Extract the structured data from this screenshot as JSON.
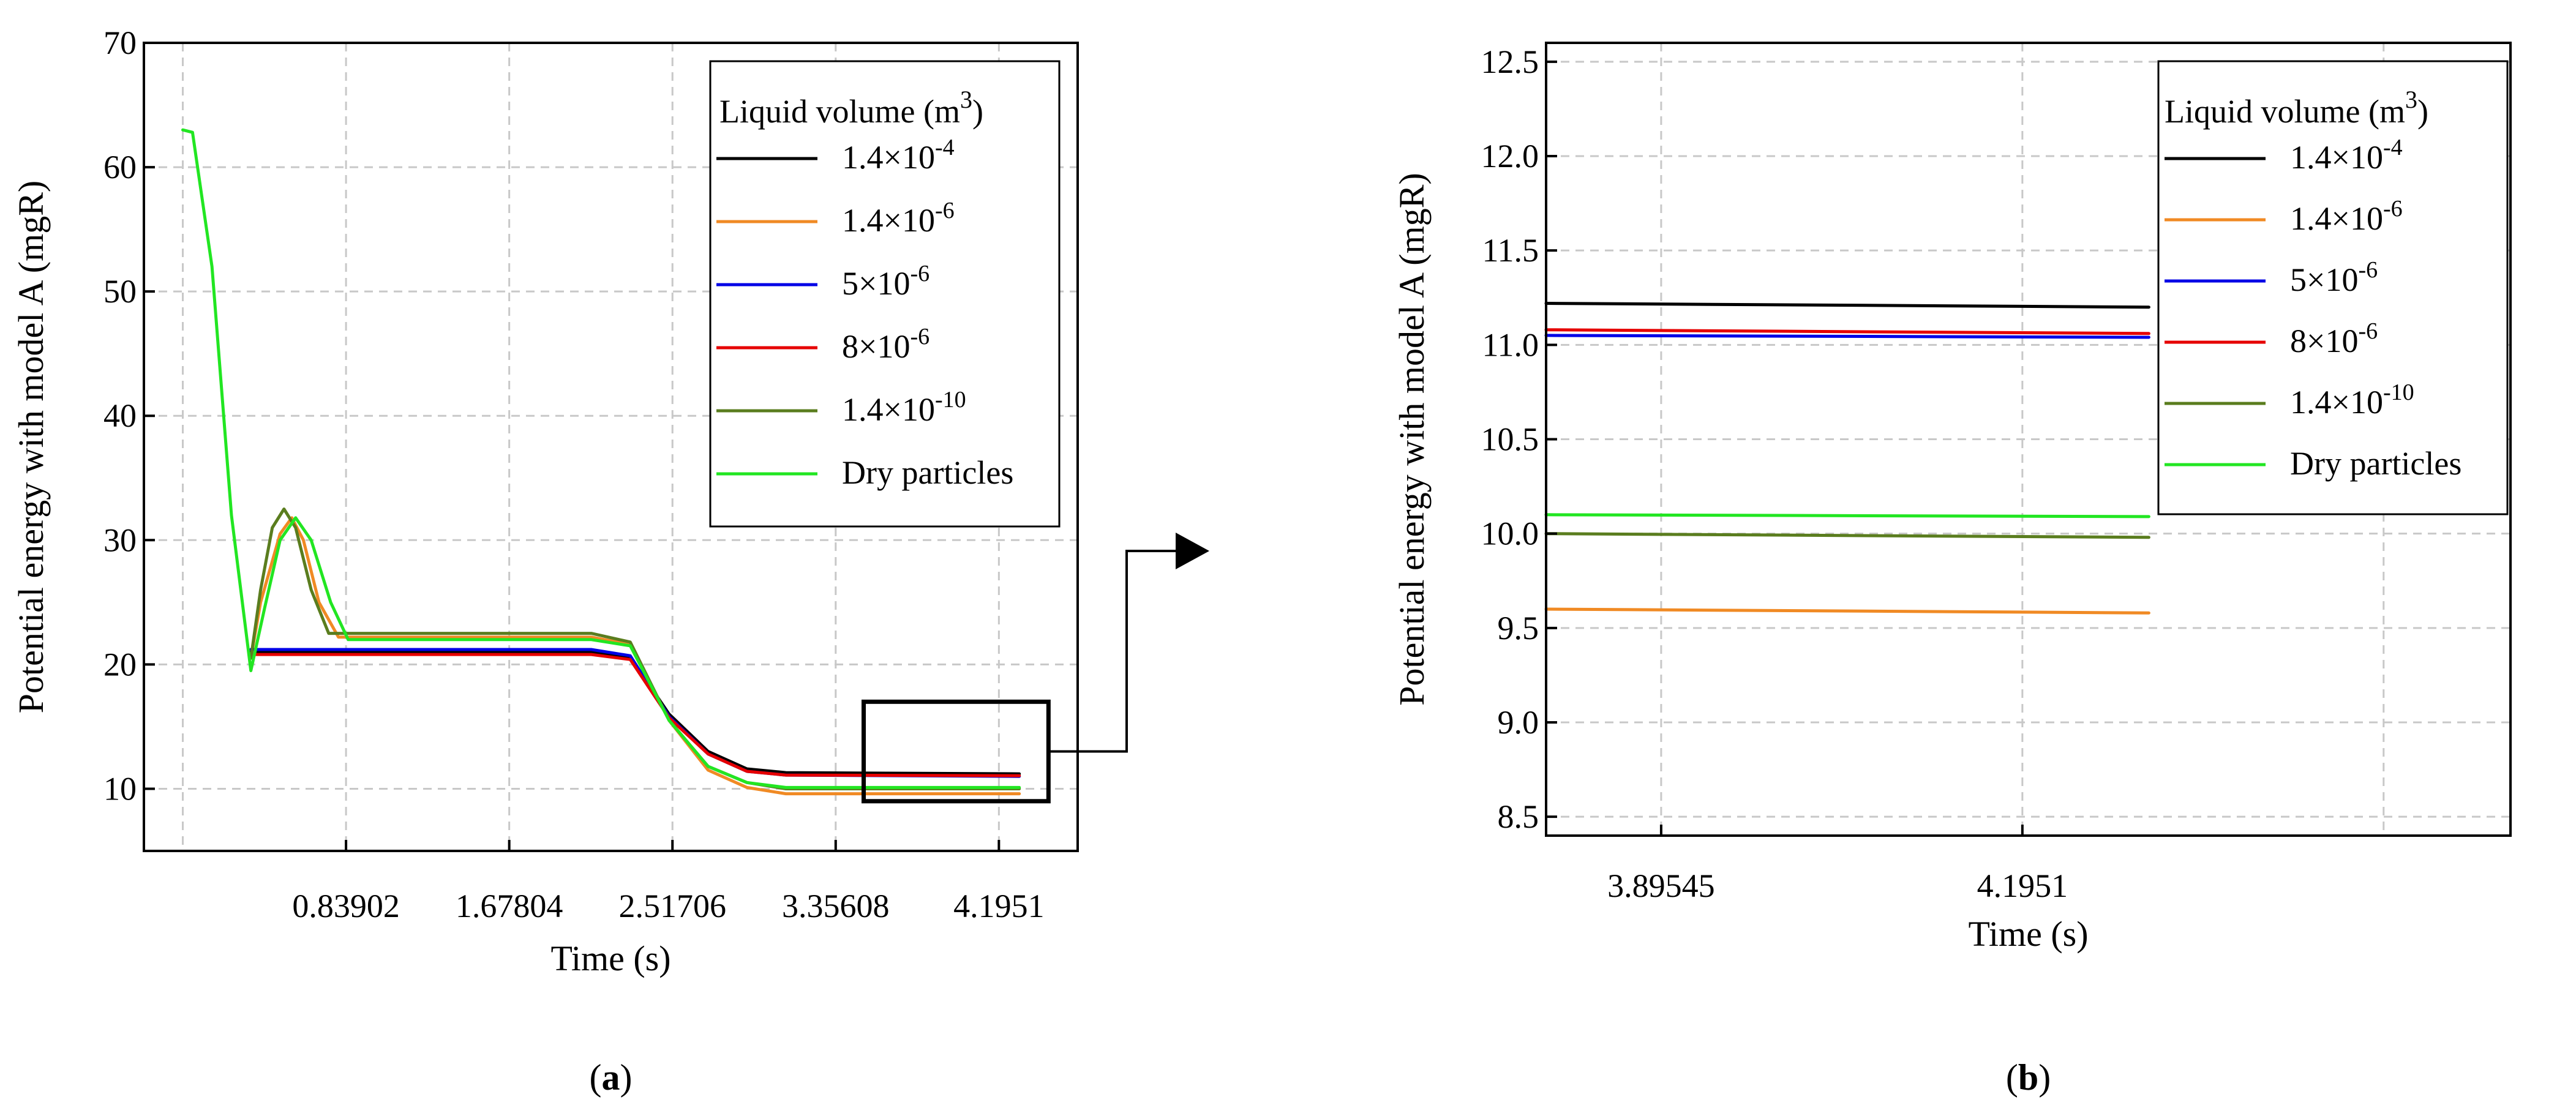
{
  "chart_data": [
    {
      "type": "line",
      "panel_label_parts": [
        "(",
        "a",
        ")"
      ],
      "xlabel": "Time (s)",
      "ylabel": "Potential energy with model A (mgR)",
      "xlim": [
        -0.2,
        4.6
      ],
      "ylim": [
        5,
        70
      ],
      "x_tick_values": [
        0.83902,
        1.67804,
        2.51706,
        3.35608,
        4.1951
      ],
      "x_tick_labels": [
        "0.83902",
        "1.67804",
        "2.51706",
        "3.35608",
        "4.1951"
      ],
      "x_grid_values": [
        0,
        0.83902,
        1.67804,
        2.51706,
        3.35608,
        4.1951
      ],
      "y_ticks": [
        10,
        20,
        30,
        40,
        50,
        60,
        70
      ],
      "legend_title": "Liquid volume (m",
      "legend_title_sup": "3",
      "legend_title_close": ")",
      "zoom_box": {
        "x": [
          3.5,
          4.45
        ],
        "y": [
          9,
          17
        ]
      },
      "series": [
        {
          "name_base": "1.4×10",
          "name_exp": "-4",
          "color": "#000000",
          "x": [
            0.35,
            0.55,
            2.1,
            2.3,
            2.5,
            2.7,
            2.9,
            3.1,
            4.3
          ],
          "y": [
            21,
            21,
            21,
            20.6,
            16,
            13,
            11.6,
            11.3,
            11.2
          ]
        },
        {
          "name_base": "1.4×10",
          "name_exp": "-6",
          "color": "#f08a24",
          "x": [
            0.35,
            0.4,
            0.5,
            0.56,
            0.62,
            0.7,
            0.8,
            2.1,
            2.3,
            2.5,
            2.7,
            2.9,
            3.1,
            4.3
          ],
          "y": [
            20.5,
            25,
            30.5,
            31.8,
            30,
            25,
            22.2,
            22.2,
            21.6,
            15.5,
            11.5,
            10.1,
            9.6,
            9.6
          ]
        },
        {
          "name_base": "5×10",
          "name_exp": "-6",
          "color": "#0000e6",
          "x": [
            0.35,
            0.55,
            2.1,
            2.3,
            2.5,
            2.7,
            2.9,
            3.1,
            4.3
          ],
          "y": [
            21.2,
            21.2,
            21.2,
            20.7,
            15.8,
            12.8,
            11.4,
            11.1,
            11.0
          ]
        },
        {
          "name_base": "8×10",
          "name_exp": "-6",
          "color": "#e60000",
          "x": [
            0.35,
            0.55,
            2.1,
            2.3,
            2.5,
            2.7,
            2.9,
            3.1,
            4.3
          ],
          "y": [
            20.8,
            20.8,
            20.8,
            20.4,
            15.7,
            12.8,
            11.4,
            11.1,
            11.05
          ]
        },
        {
          "name_base": "1.4×10",
          "name_exp": "-10",
          "color": "#5a7d1e",
          "x": [
            0.35,
            0.4,
            0.46,
            0.52,
            0.58,
            0.66,
            0.75,
            2.1,
            2.3,
            2.5,
            2.7,
            2.9,
            3.1,
            4.3
          ],
          "y": [
            20.5,
            26,
            31,
            32.5,
            31,
            26,
            22.5,
            22.5,
            21.8,
            15.5,
            11.8,
            10.5,
            10.0,
            10.0
          ]
        },
        {
          "name_base": "Dry particles",
          "name_exp": "",
          "color": "#22e622",
          "x": [
            0,
            0.05,
            0.15,
            0.25,
            0.35,
            0.42,
            0.5,
            0.58,
            0.66,
            0.76,
            0.85,
            2.1,
            2.3,
            2.5,
            2.7,
            2.9,
            3.1,
            4.3
          ],
          "y": [
            63,
            62.8,
            52,
            32,
            19.5,
            24.5,
            30,
            31.8,
            30,
            25,
            22,
            22,
            21.5,
            15.5,
            11.8,
            10.5,
            10.1,
            10.1
          ]
        }
      ]
    },
    {
      "type": "line",
      "panel_label_parts": [
        "(",
        "b",
        ")"
      ],
      "xlabel": "Time (s)",
      "ylabel": "Potential energy with model A (mgR)",
      "xlim": [
        3.8,
        4.6
      ],
      "ylim": [
        8.4,
        12.6
      ],
      "x_tick_values": [
        3.89545,
        4.1951
      ],
      "x_tick_labels": [
        "3.89545",
        "4.1951"
      ],
      "x_grid_values": [
        3.89545,
        4.1951,
        4.49475
      ],
      "y_ticks": [
        8.5,
        9.0,
        9.5,
        10.0,
        10.5,
        11.0,
        11.5,
        12.0,
        12.5
      ],
      "y_tick_labels": [
        "8.5",
        "9.0",
        "9.5",
        "10.0",
        "10.5",
        "11.0",
        "11.5",
        "12.0",
        "12.5"
      ],
      "legend_title": "Liquid volume (m",
      "legend_title_sup": "3",
      "legend_title_close": ")",
      "series": [
        {
          "name_base": "1.4×10",
          "name_exp": "-4",
          "color": "#000000",
          "x": [
            3.8,
            4.3
          ],
          "y": [
            11.22,
            11.2
          ]
        },
        {
          "name_base": "1.4×10",
          "name_exp": "-6",
          "color": "#f08a24",
          "x": [
            3.8,
            4.3
          ],
          "y": [
            9.6,
            9.58
          ]
        },
        {
          "name_base": "5×10",
          "name_exp": "-6",
          "color": "#0000e6",
          "x": [
            3.8,
            4.3
          ],
          "y": [
            11.05,
            11.04
          ]
        },
        {
          "name_base": "8×10",
          "name_exp": "-6",
          "color": "#e60000",
          "x": [
            3.8,
            4.3
          ],
          "y": [
            11.08,
            11.06
          ]
        },
        {
          "name_base": "1.4×10",
          "name_exp": "-10",
          "color": "#5a7d1e",
          "x": [
            3.8,
            4.3
          ],
          "y": [
            10.0,
            9.98
          ]
        },
        {
          "name_base": "Dry particles",
          "name_exp": "",
          "color": "#22e622",
          "x": [
            3.8,
            4.3
          ],
          "y": [
            10.1,
            10.09
          ]
        }
      ]
    }
  ]
}
